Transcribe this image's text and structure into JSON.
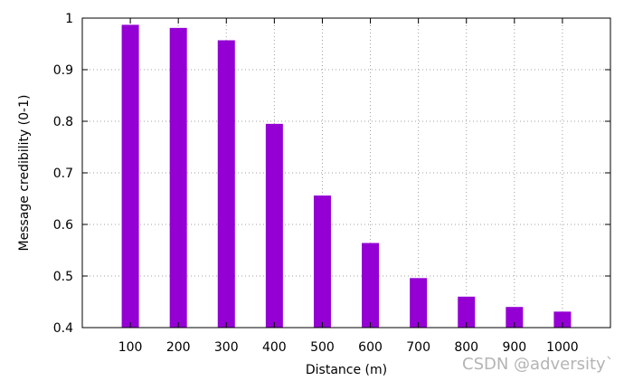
{
  "chart_data": {
    "type": "bar",
    "categories": [
      "100",
      "200",
      "300",
      "400",
      "500",
      "600",
      "700",
      "800",
      "900",
      "1000"
    ],
    "values": [
      0.987,
      0.981,
      0.957,
      0.795,
      0.656,
      0.564,
      0.496,
      0.46,
      0.44,
      0.431
    ],
    "title": "",
    "xlabel": "Distance (m)",
    "ylabel": "Message credibility (0-1)",
    "ylim": [
      0.4,
      1.0
    ],
    "yticks": [
      0.4,
      0.5,
      0.6,
      0.7,
      0.8,
      0.9,
      1.0
    ],
    "ytick_labels": [
      "0.4",
      "0.5",
      "0.6",
      "0.7",
      "0.8",
      "0.9",
      "1"
    ],
    "grid": true,
    "bar_color": "#9400d3"
  },
  "watermark": "CSDN @adversity`"
}
